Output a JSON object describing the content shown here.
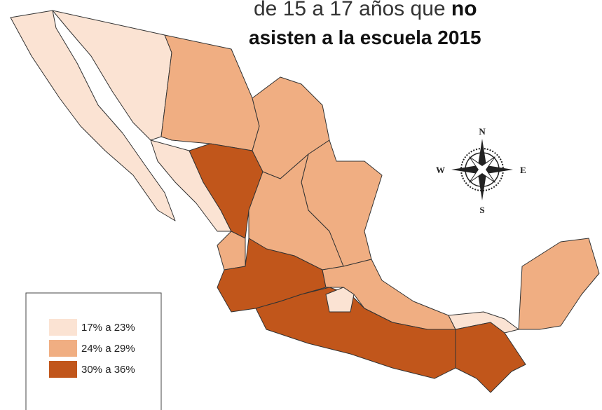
{
  "title": {
    "line1": "de 15 a 17 años que",
    "line1_bold": "no",
    "line2": "asisten a la escuela 2015"
  },
  "legend": {
    "items": [
      {
        "label": "17% a 23%",
        "color": "#fbe3d3"
      },
      {
        "label": "24% a 29%",
        "color": "#f0ae82"
      },
      {
        "label": "30% a 36%",
        "color": "#c1561b"
      }
    ]
  },
  "compass": {
    "north": "N",
    "south": "S",
    "east": "E",
    "west": "W"
  }
}
